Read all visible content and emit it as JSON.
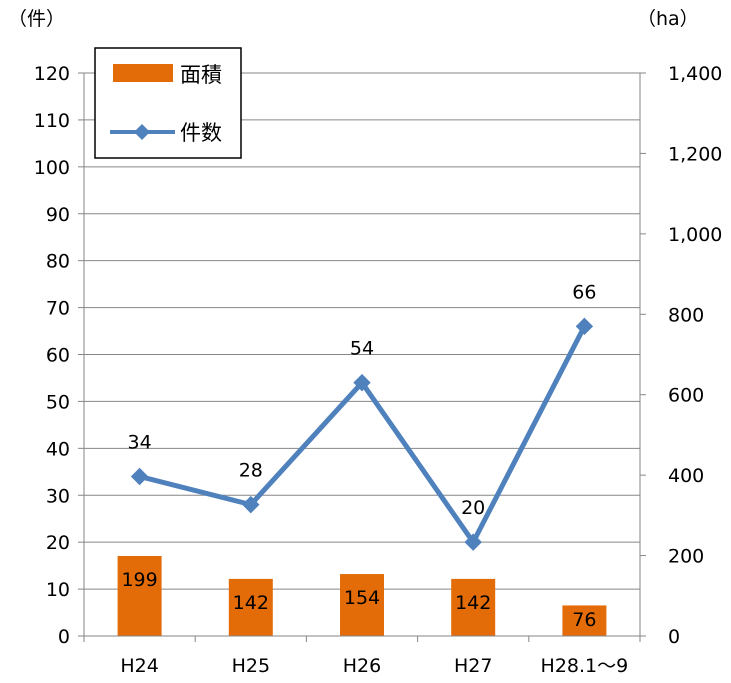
{
  "chart_data": {
    "type": "bar+line",
    "categories": [
      "H24",
      "H25",
      "H26",
      "H27",
      "H28.1〜9"
    ],
    "left_axis": {
      "unit": "（件）",
      "min": 0,
      "max": 120,
      "ticks": [
        0,
        10,
        20,
        30,
        40,
        50,
        60,
        70,
        80,
        90,
        100,
        110,
        120
      ],
      "tick_labels": [
        "0",
        "10",
        "20",
        "30",
        "40",
        "50",
        "60",
        "70",
        "80",
        "90",
        "100",
        "110",
        "120"
      ]
    },
    "right_axis": {
      "unit": "（ha）",
      "min": 0,
      "max": 1400,
      "ticks": [
        0,
        200,
        400,
        600,
        800,
        1000,
        1200,
        1400
      ],
      "tick_labels": [
        "0",
        "200",
        "400",
        "600",
        "800",
        "1,000",
        "1,200",
        "1,400"
      ]
    },
    "grid": true,
    "legend_position": "top-left",
    "series": [
      {
        "name": "面積",
        "kind": "bar",
        "axis": "right",
        "color": "#E36C09",
        "values": [
          199,
          142,
          154,
          142,
          76
        ],
        "labels": [
          "199",
          "142",
          "154",
          "142",
          "76"
        ]
      },
      {
        "name": "件数",
        "kind": "line",
        "axis": "left",
        "color": "#4F81BD",
        "marker": "diamond",
        "values": [
          34,
          28,
          54,
          20,
          66
        ],
        "labels": [
          "34",
          "28",
          "54",
          "20",
          "66"
        ]
      }
    ]
  }
}
